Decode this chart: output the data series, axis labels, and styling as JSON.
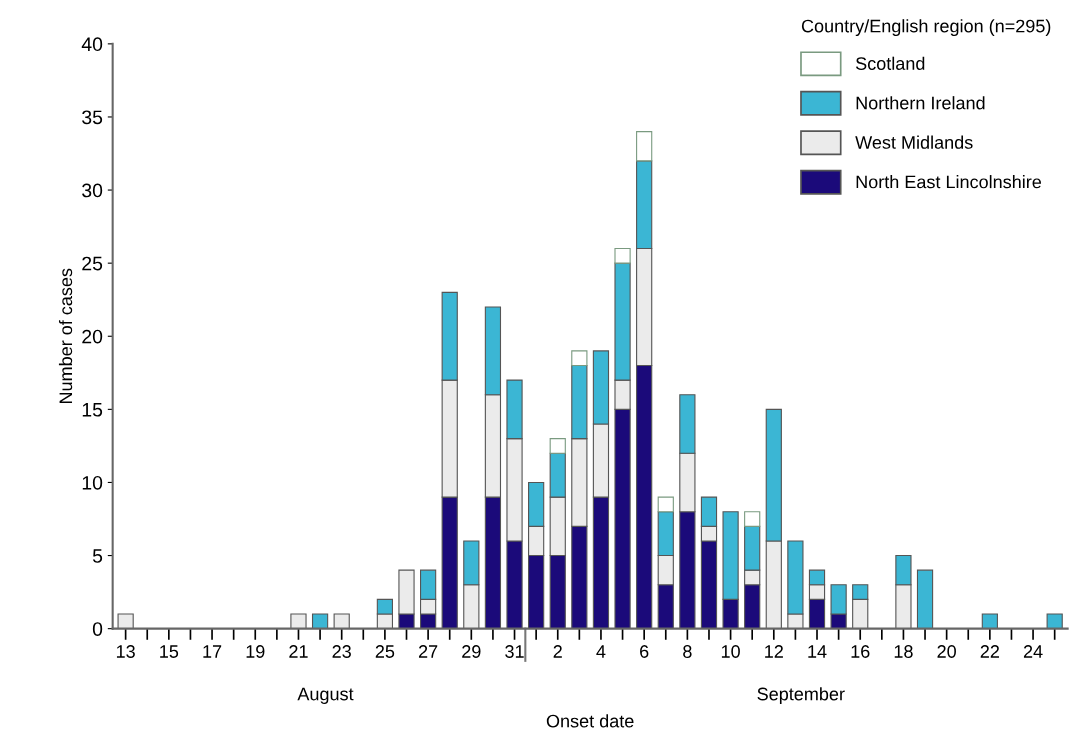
{
  "chart_data": {
    "type": "bar",
    "stacked": true,
    "xlabel": "Onset date",
    "ylabel": "Number of cases",
    "legend_title": "Country/English region (n=295)",
    "categories": [
      "13",
      null,
      "15",
      null,
      "17",
      null,
      "19",
      null,
      "21",
      null,
      "23",
      null,
      "25",
      null,
      "27",
      null,
      "29",
      null,
      "31",
      null,
      "2",
      null,
      "4",
      null,
      "6",
      null,
      "8",
      null,
      "10",
      null,
      "12",
      null,
      "14",
      null,
      "16",
      null,
      "18",
      null,
      "20",
      null,
      "22",
      null,
      "24",
      null
    ],
    "series": [
      {
        "name": "North East Lincolnshire",
        "color": "#1b0a7a",
        "values": [
          0,
          0,
          0,
          0,
          0,
          0,
          0,
          0,
          0,
          0,
          0,
          0,
          0,
          1,
          1,
          9,
          0,
          9,
          6,
          5,
          5,
          7,
          9,
          15,
          18,
          3,
          8,
          6,
          2,
          3,
          0,
          0,
          2,
          1,
          0,
          0,
          0,
          0,
          0,
          0,
          0,
          0,
          0,
          0
        ]
      },
      {
        "name": "West Midlands",
        "color": "#ebebeb",
        "values": [
          1,
          0,
          0,
          0,
          0,
          0,
          0,
          0,
          1,
          0,
          1,
          0,
          1,
          3,
          1,
          8,
          3,
          7,
          7,
          2,
          4,
          6,
          5,
          2,
          8,
          2,
          4,
          1,
          0,
          1,
          6,
          1,
          1,
          0,
          2,
          0,
          3,
          0,
          0,
          0,
          0,
          0,
          0,
          0
        ]
      },
      {
        "name": "Northern Ireland",
        "color": "#3bb6d4",
        "values": [
          0,
          0,
          0,
          0,
          0,
          0,
          0,
          0,
          0,
          1,
          0,
          0,
          1,
          0,
          2,
          6,
          3,
          6,
          4,
          3,
          3,
          5,
          5,
          8,
          6,
          3,
          4,
          2,
          6,
          3,
          9,
          5,
          1,
          2,
          1,
          0,
          2,
          4,
          0,
          0,
          1,
          0,
          0,
          1
        ]
      },
      {
        "name": "Scotland",
        "color": "#ffffff",
        "values": [
          0,
          0,
          0,
          0,
          0,
          0,
          0,
          0,
          0,
          0,
          0,
          0,
          0,
          0,
          0,
          0,
          0,
          0,
          0,
          0,
          1,
          1,
          0,
          1,
          2,
          1,
          0,
          0,
          0,
          1,
          0,
          0,
          0,
          0,
          0,
          0,
          0,
          0,
          0,
          0,
          0,
          0,
          0,
          0
        ]
      }
    ],
    "ylim": [
      0,
      40
    ],
    "yticks": [
      0,
      5,
      10,
      15,
      20,
      25,
      30,
      35,
      40
    ],
    "grid": false,
    "legend": "top right",
    "annotations": [
      "August",
      "September"
    ]
  }
}
